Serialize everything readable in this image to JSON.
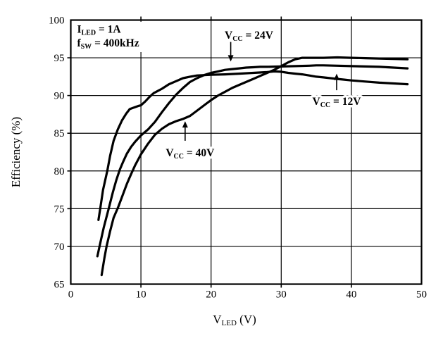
{
  "page": {
    "background": "#ffffff",
    "ink_color": "#000000"
  },
  "chart_data": {
    "type": "line",
    "title": "",
    "xlabel": {
      "pre": "V",
      "sub": "LED",
      "post": " (V)"
    },
    "ylabel": "Efficiency (%)",
    "xlim": [
      0,
      50
    ],
    "ylim": [
      65,
      100
    ],
    "xticks": [
      "0",
      "10",
      "20",
      "30",
      "40",
      "50"
    ],
    "xtick_values": [
      0,
      10,
      20,
      30,
      40,
      50
    ],
    "yticks": [
      "65",
      "70",
      "75",
      "80",
      "85",
      "90",
      "95",
      "100"
    ],
    "ytick_values": [
      65,
      70,
      75,
      80,
      85,
      90,
      95,
      100
    ],
    "grid": true,
    "legend_position": "none",
    "conditions": {
      "x": 0.9,
      "lines": [
        {
          "pre": "I",
          "sub": "LED",
          "post": " = 1A",
          "y": 98.3
        },
        {
          "pre": "f",
          "sub": "SW",
          "post": " = 400kHz",
          "y": 96.5
        }
      ]
    },
    "series": [
      {
        "name": "Vcc = 12V",
        "points": [
          [
            3.95,
            73.5
          ],
          [
            4.2,
            75
          ],
          [
            4.6,
            77.5
          ],
          [
            5.2,
            80
          ],
          [
            5.6,
            82
          ],
          [
            6.1,
            84
          ],
          [
            6.7,
            85.5
          ],
          [
            7.3,
            86.7
          ],
          [
            7.9,
            87.6
          ],
          [
            8.4,
            88.2
          ],
          [
            9.0,
            88.4
          ],
          [
            9.6,
            88.6
          ],
          [
            10,
            88.7
          ],
          [
            10.6,
            89.2
          ],
          [
            11.2,
            89.8
          ],
          [
            11.8,
            90.3
          ],
          [
            12.4,
            90.6
          ],
          [
            13,
            90.9
          ],
          [
            14,
            91.5
          ],
          [
            15,
            91.9
          ],
          [
            16,
            92.3
          ],
          [
            17,
            92.5
          ],
          [
            18,
            92.65
          ],
          [
            19,
            92.7
          ],
          [
            20,
            92.75
          ],
          [
            22,
            92.8
          ],
          [
            24,
            92.9
          ],
          [
            26,
            93.0
          ],
          [
            28,
            93.1
          ],
          [
            29,
            93.2
          ],
          [
            30,
            93.15
          ],
          [
            31,
            93.0
          ],
          [
            32,
            92.9
          ],
          [
            33,
            92.8
          ],
          [
            34,
            92.65
          ],
          [
            35,
            92.5
          ],
          [
            36,
            92.4
          ],
          [
            37,
            92.3
          ],
          [
            38,
            92.2
          ],
          [
            39,
            92.1
          ],
          [
            40,
            92.0
          ],
          [
            42,
            91.85
          ],
          [
            44,
            91.7
          ],
          [
            46,
            91.6
          ],
          [
            48,
            91.5
          ]
        ]
      },
      {
        "name": "Vcc = 24V",
        "points": [
          [
            3.8,
            68.7
          ],
          [
            4.1,
            70
          ],
          [
            4.7,
            72.5
          ],
          [
            5.4,
            75
          ],
          [
            6.0,
            77.2
          ],
          [
            6.5,
            78.8
          ],
          [
            7.0,
            80.2
          ],
          [
            7.5,
            81.3
          ],
          [
            8.0,
            82.3
          ],
          [
            8.6,
            83.2
          ],
          [
            9.2,
            83.9
          ],
          [
            10,
            84.7
          ],
          [
            11,
            85.5
          ],
          [
            12,
            86.5
          ],
          [
            13,
            87.8
          ],
          [
            14,
            89.0
          ],
          [
            15,
            90.1
          ],
          [
            16,
            91.0
          ],
          [
            17,
            91.8
          ],
          [
            18,
            92.3
          ],
          [
            19,
            92.7
          ],
          [
            20,
            93.0
          ],
          [
            21,
            93.2
          ],
          [
            22,
            93.4
          ],
          [
            23,
            93.5
          ],
          [
            24,
            93.6
          ],
          [
            25,
            93.7
          ],
          [
            26,
            93.75
          ],
          [
            27,
            93.8
          ],
          [
            28,
            93.8
          ],
          [
            30,
            93.85
          ],
          [
            32,
            93.9
          ],
          [
            34,
            93.95
          ],
          [
            35,
            94.0
          ],
          [
            36,
            94.0
          ],
          [
            38,
            93.95
          ],
          [
            40,
            93.9
          ],
          [
            42,
            93.85
          ],
          [
            44,
            93.8
          ],
          [
            46,
            93.7
          ],
          [
            48,
            93.6
          ]
        ]
      },
      {
        "name": "Vcc = 40V",
        "points": [
          [
            4.4,
            66.2
          ],
          [
            4.8,
            68.5
          ],
          [
            5.1,
            70
          ],
          [
            5.6,
            72
          ],
          [
            6.1,
            73.8
          ],
          [
            6.8,
            75.3
          ],
          [
            7.4,
            76.8
          ],
          [
            8.0,
            78.3
          ],
          [
            8.6,
            79.6
          ],
          [
            9.2,
            80.8
          ],
          [
            10,
            82.2
          ],
          [
            11,
            83.6
          ],
          [
            12,
            84.8
          ],
          [
            13,
            85.6
          ],
          [
            14,
            86.2
          ],
          [
            15,
            86.6
          ],
          [
            16,
            86.9
          ],
          [
            17,
            87.3
          ],
          [
            18,
            88.0
          ],
          [
            19,
            88.7
          ],
          [
            20,
            89.4
          ],
          [
            21,
            90.0
          ],
          [
            22,
            90.5
          ],
          [
            23,
            91.0
          ],
          [
            24,
            91.4
          ],
          [
            25,
            91.8
          ],
          [
            26,
            92.2
          ],
          [
            27,
            92.6
          ],
          [
            28,
            93.0
          ],
          [
            29,
            93.4
          ],
          [
            30,
            93.9
          ],
          [
            31,
            94.4
          ],
          [
            32,
            94.8
          ],
          [
            33,
            95.0
          ],
          [
            34,
            95.0
          ],
          [
            36,
            95.0
          ],
          [
            38,
            95.05
          ],
          [
            40,
            95.0
          ],
          [
            42,
            94.95
          ],
          [
            44,
            94.9
          ],
          [
            46,
            94.85
          ],
          [
            48,
            94.8
          ]
        ]
      }
    ],
    "series_labels": [
      {
        "series": "Vcc = 24V",
        "pre": "V",
        "sub": "CC",
        "post": " = 24V",
        "x": 25.4,
        "y": 98.0,
        "arrow": {
          "x": 22.8,
          "from_y": 97.1,
          "to_y": 94.5,
          "direction": "down"
        }
      },
      {
        "series": "Vcc = 12V",
        "pre": "V",
        "sub": "CC",
        "post": " = 12V",
        "x": 37.9,
        "y": 89.2,
        "arrow": {
          "x": 37.9,
          "from_y": 90.7,
          "to_y": 92.9,
          "direction": "up"
        }
      },
      {
        "series": "Vcc = 40V",
        "pre": "V",
        "sub": "CC",
        "post": " = 40V",
        "x": 17.0,
        "y": 82.4,
        "arrow": {
          "x": 16.3,
          "from_y": 84.0,
          "to_y": 86.6,
          "direction": "up"
        }
      }
    ]
  }
}
